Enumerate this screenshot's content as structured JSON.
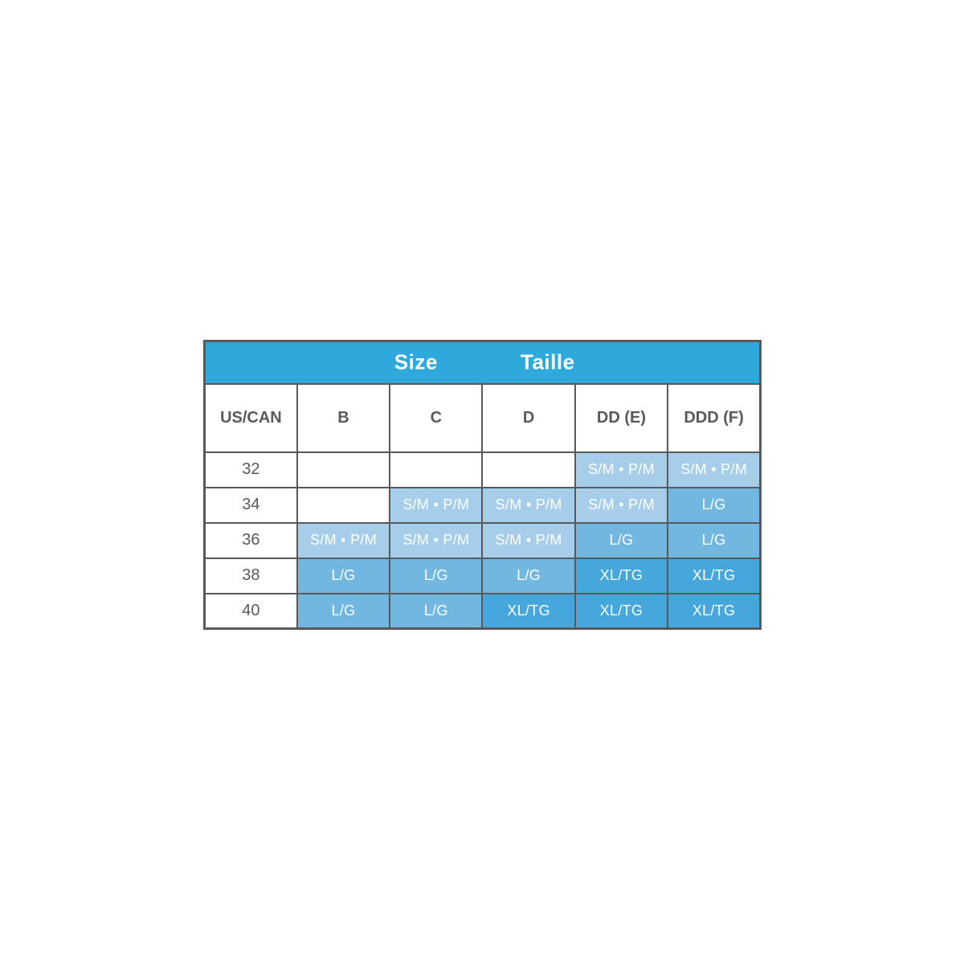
{
  "table": {
    "title_en": "Size",
    "title_fr": "Taille",
    "columns": [
      "US/CAN",
      "B",
      "C",
      "D",
      "DD (E)",
      "DDD (F)"
    ],
    "rows": [
      {
        "label": "32",
        "cells": [
          "",
          "",
          "",
          "S/M • P/M",
          "S/M • P/M"
        ]
      },
      {
        "label": "34",
        "cells": [
          "",
          "S/M • P/M",
          "S/M • P/M",
          "S/M • P/M",
          "L/G"
        ]
      },
      {
        "label": "36",
        "cells": [
          "S/M • P/M",
          "S/M • P/M",
          "S/M • P/M",
          "L/G",
          "L/G"
        ]
      },
      {
        "label": "38",
        "cells": [
          "L/G",
          "L/G",
          "L/G",
          "XL/TG",
          "XL/TG"
        ]
      },
      {
        "label": "40",
        "cells": [
          "L/G",
          "L/G",
          "XL/TG",
          "XL/TG",
          "XL/TG"
        ]
      }
    ],
    "colors": {
      "header_bg": "#2FA8DC",
      "header_text": "#FFFFFF",
      "grid_line": "#58595B",
      "label_text": "#58595B",
      "cell_text": "#FFFFFF",
      "empty_cell_bg": "#FFFFFF",
      "value_colors": {
        "S/M • P/M": "#A6CDE9",
        "L/G": "#72B7DF",
        "XL/TG": "#45A7DB"
      }
    }
  }
}
